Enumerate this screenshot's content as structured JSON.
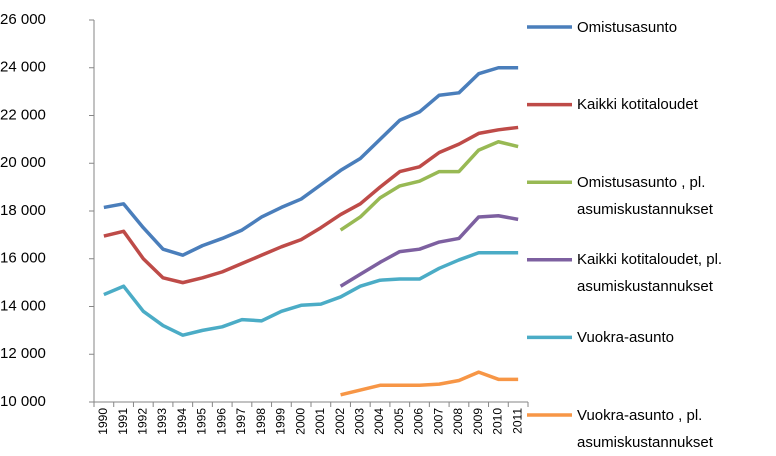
{
  "chart_data": {
    "type": "line",
    "categories": [
      "1990",
      "1991",
      "1992",
      "1993",
      "1994",
      "1995",
      "1996",
      "1997",
      "1998",
      "1999",
      "2000",
      "2001",
      "2002",
      "2003",
      "2004",
      "2005",
      "2006",
      "2007",
      "2008",
      "2009",
      "2010",
      "2011"
    ],
    "series": [
      {
        "name": "Omistusasunto",
        "color": "#4a7ebb",
        "values": [
          18150,
          18300,
          17300,
          16400,
          16150,
          16550,
          16850,
          17200,
          17750,
          18150,
          18500,
          19100,
          19700,
          20200,
          21000,
          21800,
          22150,
          22850,
          22950,
          23750,
          24000,
          24000
        ]
      },
      {
        "name": "Kaikki kotitaloudet",
        "color": "#be4b48",
        "values": [
          16950,
          17150,
          16000,
          15200,
          15000,
          15200,
          15450,
          15800,
          16150,
          16500,
          16800,
          17300,
          17850,
          18300,
          19000,
          19650,
          19850,
          20450,
          20800,
          21250,
          21400,
          21500
        ]
      },
      {
        "name": "Omistusasunto , pl. asumiskustannukset",
        "color": "#98b954",
        "values": [
          null,
          null,
          null,
          null,
          null,
          null,
          null,
          null,
          null,
          null,
          null,
          null,
          17200,
          17750,
          18550,
          19050,
          19250,
          19650,
          19650,
          20550,
          20900,
          20700
        ]
      },
      {
        "name": "Kaikki kotitaloudet, pl. asumiskustannukset",
        "color": "#7d60a0",
        "values": [
          null,
          null,
          null,
          null,
          null,
          null,
          null,
          null,
          null,
          null,
          null,
          null,
          14850,
          15350,
          15850,
          16300,
          16400,
          16700,
          16850,
          17750,
          17800,
          17650
        ]
      },
      {
        "name": "Vuokra-asunto",
        "color": "#4bacc6",
        "values": [
          14500,
          14850,
          13800,
          13200,
          12800,
          13000,
          13150,
          13450,
          13400,
          13800,
          14050,
          14100,
          14400,
          14850,
          15100,
          15150,
          15150,
          15600,
          15950,
          16250,
          16250,
          16250
        ]
      },
      {
        "name": "Vuokra-asunto , pl. asumiskustannukset",
        "color": "#f79646",
        "values": [
          null,
          null,
          null,
          null,
          null,
          null,
          null,
          null,
          null,
          null,
          null,
          null,
          10300,
          10500,
          10700,
          10700,
          10700,
          10750,
          10900,
          11250,
          10950,
          10950
        ]
      }
    ],
    "ylim": [
      10000,
      26000
    ],
    "yticks": [
      {
        "value": 10000,
        "label": "10 000"
      },
      {
        "value": 12000,
        "label": "12 000"
      },
      {
        "value": 14000,
        "label": "14 000"
      },
      {
        "value": 16000,
        "label": "16 000"
      },
      {
        "value": 18000,
        "label": "18 000"
      },
      {
        "value": 20000,
        "label": "20 000"
      },
      {
        "value": 22000,
        "label": "22 000"
      },
      {
        "value": 24000,
        "label": "24 000"
      },
      {
        "value": 26000,
        "label": "26 000"
      }
    ],
    "grid": false,
    "legend": "right"
  }
}
